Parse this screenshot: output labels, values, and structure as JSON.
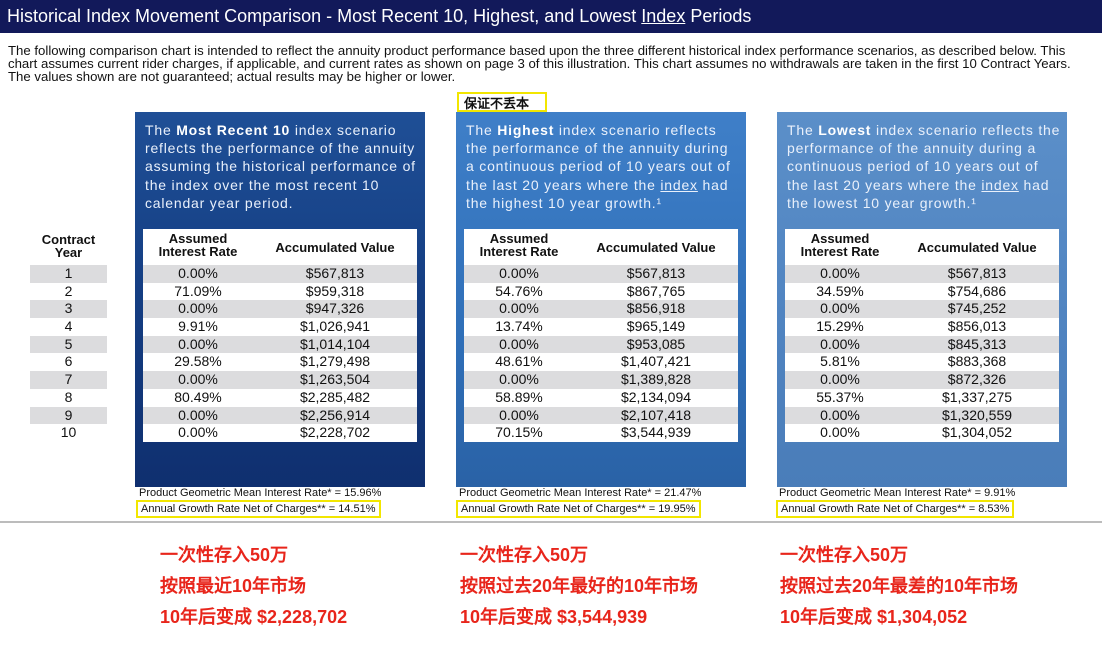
{
  "title": {
    "prefix": "Historical Index Movement Comparison - Most Recent 10, Highest, and Lowest ",
    "underlined": "Index",
    "suffix": " Periods"
  },
  "intro": "The following comparison chart is intended to reflect the annuity product performance based upon the three different historical index performance scenarios, as described below. This chart assumes current rider charges, if applicable, and current rates as shown on page 3 of this illustration. This chart assumes no withdrawals are taken in the first 10 Contract Years. The values shown are not guaranteed; actual results may be higher or lower.",
  "stamp": "保证不丢本",
  "year_header": {
    "line1": "Contract",
    "line2": "Year"
  },
  "years": [
    "1",
    "2",
    "3",
    "4",
    "5",
    "6",
    "7",
    "8",
    "9",
    "10"
  ],
  "table_header": {
    "rate_line1": "Assumed",
    "rate_line2": "Interest Rate",
    "value": "Accumulated Value"
  },
  "panels": [
    {
      "desc": {
        "pre": "The ",
        "bold": "Most Recent 10",
        "post": " index scenario reflects the performance of the annuity assuming the historical performance of the index over the most recent 10 calendar year period."
      },
      "rows": [
        {
          "rate": "0.00%",
          "value": "$567,813"
        },
        {
          "rate": "71.09%",
          "value": "$959,318"
        },
        {
          "rate": "0.00%",
          "value": "$947,326"
        },
        {
          "rate": "9.91%",
          "value": "$1,026,941"
        },
        {
          "rate": "0.00%",
          "value": "$1,014,104"
        },
        {
          "rate": "29.58%",
          "value": "$1,279,498"
        },
        {
          "rate": "0.00%",
          "value": "$1,263,504"
        },
        {
          "rate": "80.49%",
          "value": "$2,285,482"
        },
        {
          "rate": "0.00%",
          "value": "$2,256,914"
        },
        {
          "rate": "0.00%",
          "value": "$2,228,702"
        }
      ],
      "footer1": "Product Geometric Mean Interest Rate* = 15.96%",
      "footer2": "Annual Growth Rate Net of Charges** = 14.51%",
      "note": [
        "一次性存入50万",
        "按照最近10年市场",
        "10年后变成 $2,228,702"
      ]
    },
    {
      "desc": {
        "pre": "The ",
        "bold": "Highest",
        "mid": " index scenario reflects the performance of the annuity during a continuous period of 10 years out of the last 20 years where the ",
        "link": "index",
        "post": " had the highest 10 year growth.¹"
      },
      "rows": [
        {
          "rate": "0.00%",
          "value": "$567,813"
        },
        {
          "rate": "54.76%",
          "value": "$867,765"
        },
        {
          "rate": "0.00%",
          "value": "$856,918"
        },
        {
          "rate": "13.74%",
          "value": "$965,149"
        },
        {
          "rate": "0.00%",
          "value": "$953,085"
        },
        {
          "rate": "48.61%",
          "value": "$1,407,421"
        },
        {
          "rate": "0.00%",
          "value": "$1,389,828"
        },
        {
          "rate": "58.89%",
          "value": "$2,134,094"
        },
        {
          "rate": "0.00%",
          "value": "$2,107,418"
        },
        {
          "rate": "70.15%",
          "value": "$3,544,939"
        }
      ],
      "footer1": "Product Geometric Mean Interest Rate* = 21.47%",
      "footer2": "Annual Growth Rate Net of Charges** = 19.95%",
      "note": [
        "一次性存入50万",
        "按照过去20年最好的10年市场",
        "10年后变成 $3,544,939"
      ]
    },
    {
      "desc": {
        "pre": "The ",
        "bold": "Lowest",
        "mid": " index scenario reflects the performance of the annuity during a continuous period of 10 years out of the last 20 years where the ",
        "link": "index",
        "post": " had the lowest 10 year growth.¹"
      },
      "rows": [
        {
          "rate": "0.00%",
          "value": "$567,813"
        },
        {
          "rate": "34.59%",
          "value": "$754,686"
        },
        {
          "rate": "0.00%",
          "value": "$745,252"
        },
        {
          "rate": "15.29%",
          "value": "$856,013"
        },
        {
          "rate": "0.00%",
          "value": "$845,313"
        },
        {
          "rate": "5.81%",
          "value": "$883,368"
        },
        {
          "rate": "0.00%",
          "value": "$872,326"
        },
        {
          "rate": "55.37%",
          "value": "$1,337,275"
        },
        {
          "rate": "0.00%",
          "value": "$1,320,559"
        },
        {
          "rate": "0.00%",
          "value": "$1,304,052"
        }
      ],
      "footer1": "Product Geometric Mean Interest Rate* = 9.91%",
      "footer2": "Annual Growth Rate Net of Charges** = 8.53%",
      "note": [
        "一次性存入50万",
        "按照过去20年最差的10年市场",
        "10年后变成 $1,304,052"
      ]
    }
  ],
  "colors": {
    "title_bar": "#12195a",
    "highlight_box": "#f2e600",
    "note_red": "#e8251b",
    "row_stripe": "#dcdcde"
  }
}
